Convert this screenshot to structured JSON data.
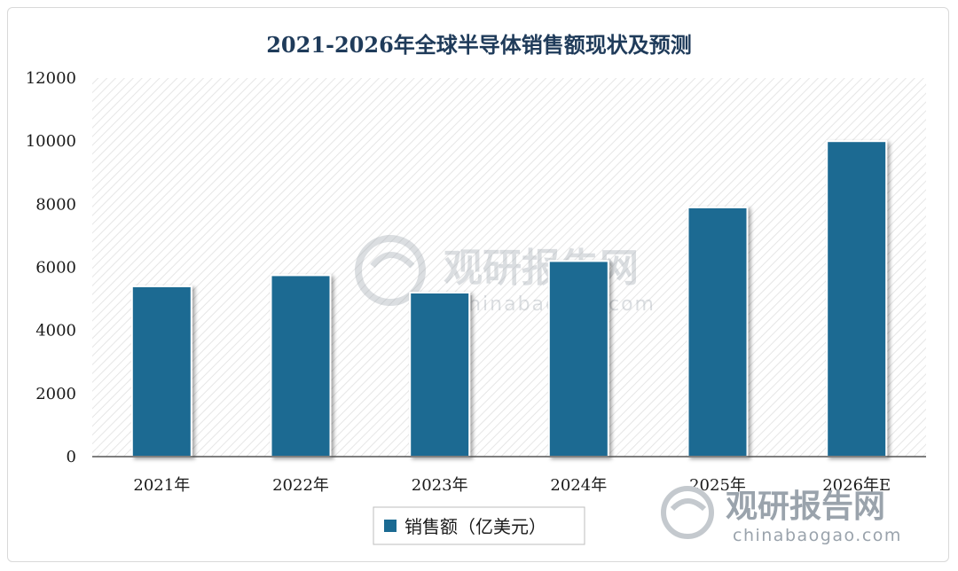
{
  "colors": {
    "bar": "#1b6a92",
    "axis": "#555555",
    "title": "#1f3b5a",
    "watermark": "#9aa3ac"
  },
  "watermark": {
    "center_main": "观研报告网",
    "center_sub": "chinabaogao.com",
    "corner_main": "观研报告网",
    "corner_sub": "chinabaogao.com"
  },
  "chart_data": {
    "type": "bar",
    "title": "2021-2026年全球半导体销售额现状及预测",
    "categories": [
      "2021年",
      "2022年",
      "2023年",
      "2024年",
      "2025年",
      "2026年E"
    ],
    "series": [
      {
        "name": "销售额（亿美元）",
        "values": [
          5400,
          5750,
          5200,
          6200,
          7900,
          10000
        ]
      }
    ],
    "ylim": [
      0,
      12000
    ],
    "yticks": [
      0,
      2000,
      4000,
      6000,
      8000,
      10000,
      12000
    ],
    "xlabel": "",
    "ylabel": "",
    "grid": false,
    "legend": "bottom-center"
  }
}
